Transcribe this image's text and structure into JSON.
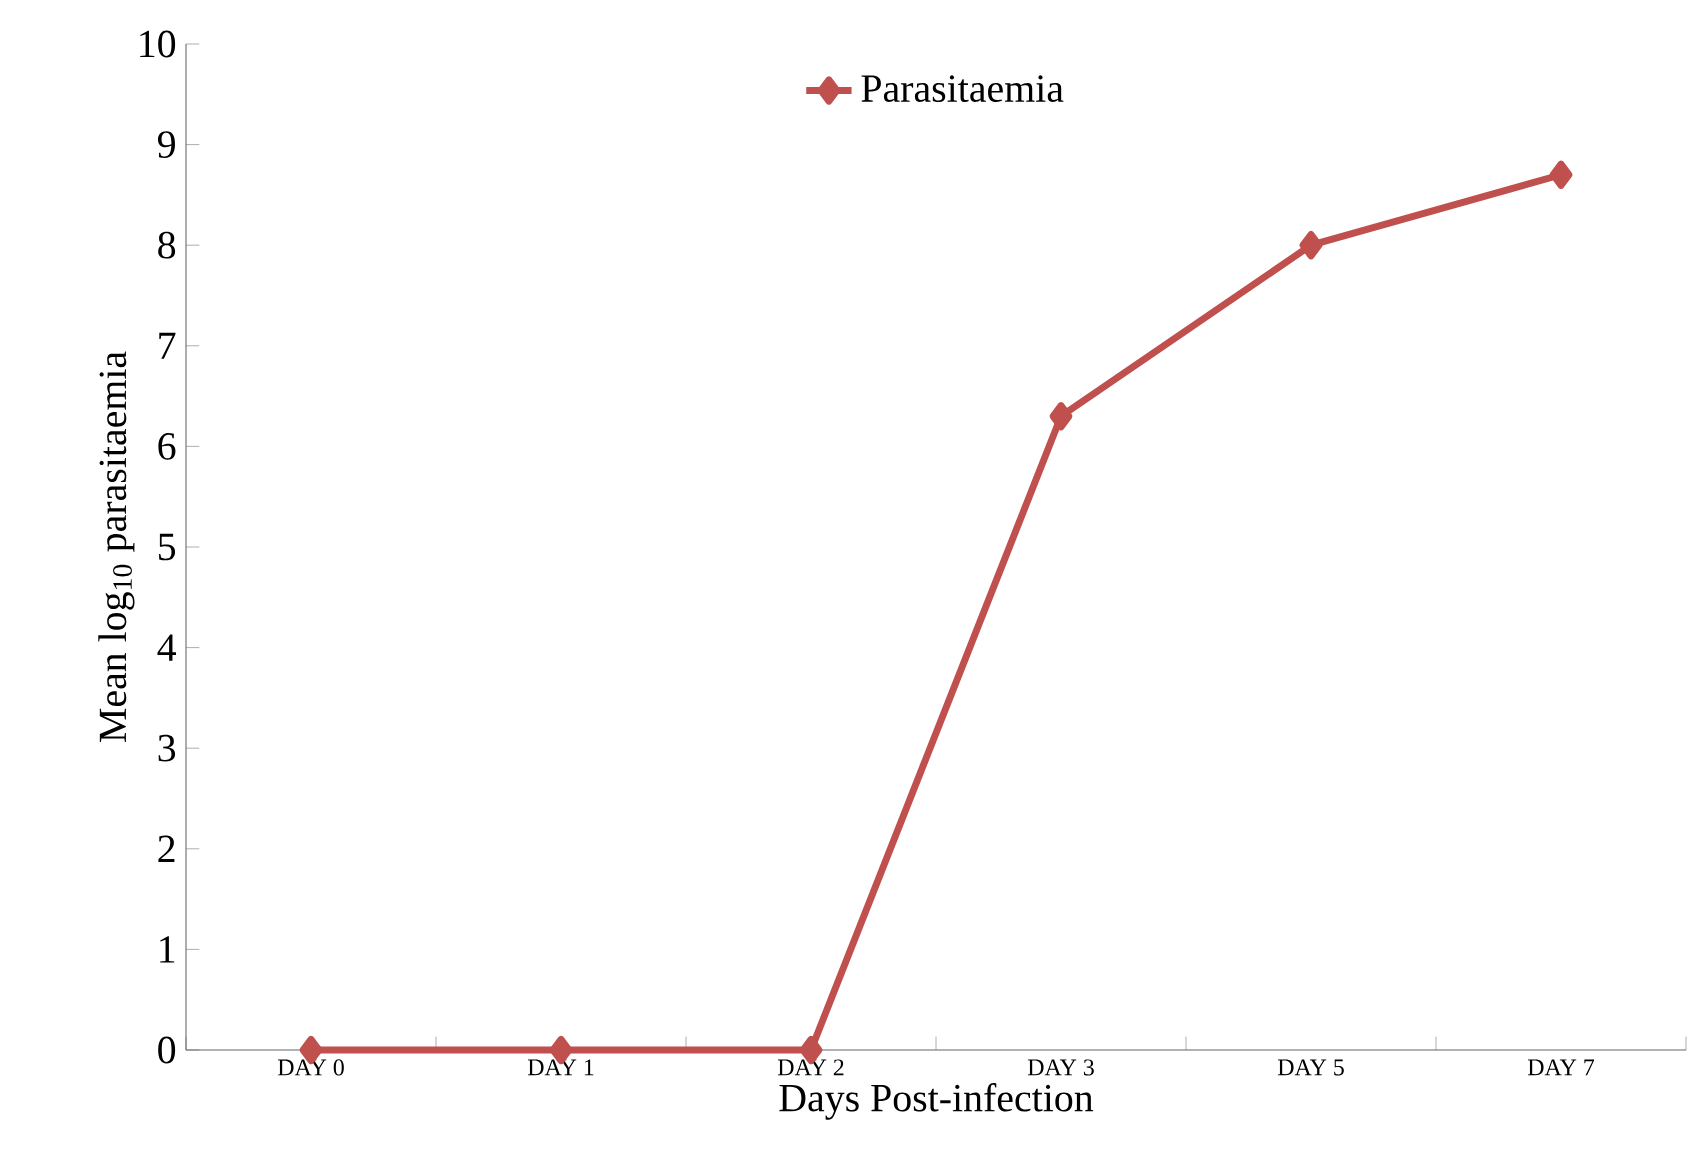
{
  "chart_data": {
    "type": "line",
    "xlabel": "Days Post-infection",
    "ylabel": "Mean log$_{10}$ parasitaemia",
    "categories": [
      "DAY 0",
      "DAY 1",
      "DAY 2",
      "DAY 3",
      "DAY 5",
      "DAY 7"
    ],
    "series": [
      {
        "name": "Parasitaemia",
        "color": "#c0504d",
        "values": [
          0,
          0,
          0,
          6.3,
          8.0,
          8.7
        ]
      }
    ],
    "ylim": [
      0,
      10
    ],
    "yticks": [
      0,
      1,
      2,
      3,
      4,
      5,
      6,
      7,
      8,
      9,
      10
    ],
    "legend": "top",
    "marker": "diamond",
    "line_style": "solid",
    "grid": false
  }
}
